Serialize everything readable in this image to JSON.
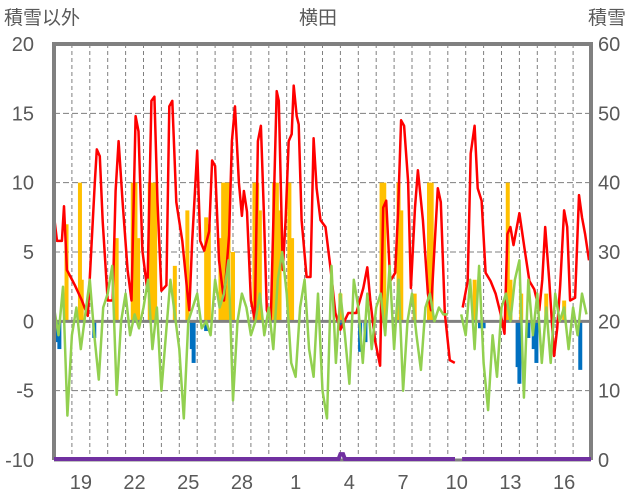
{
  "chart_data": {
    "type": "line",
    "title": "横田",
    "ylabel_left": "積雪以外",
    "ylabel_right": "積雪",
    "ylim_left": [
      -10,
      20
    ],
    "yticks_left": [
      "-10",
      "-5",
      "0",
      "5",
      "10",
      "15",
      "20"
    ],
    "ylim_right": [
      0,
      60
    ],
    "yticks_right": [
      "0",
      "10",
      "20",
      "30",
      "40",
      "50",
      "60"
    ],
    "x_unit": "days from the first day shown (day 18)",
    "xlim": [
      0,
      30
    ],
    "xtick_labels": [
      {
        "day": 1,
        "label": "19"
      },
      {
        "day": 4,
        "label": "22"
      },
      {
        "day": 7,
        "label": "25"
      },
      {
        "day": 10,
        "label": "28"
      },
      {
        "day": 13,
        "label": "1"
      },
      {
        "day": 16,
        "label": "4"
      },
      {
        "day": 19,
        "label": "7"
      },
      {
        "day": 22,
        "label": "10"
      },
      {
        "day": 25,
        "label": "13"
      },
      {
        "day": 28,
        "label": "16"
      }
    ],
    "grid": true,
    "colors": {
      "red": "#ff0000",
      "green": "#92d050",
      "orange": "#ffc000",
      "blue": "#0070c0",
      "purple": "#7030a0",
      "axis": "#808080",
      "grid": "#7f7f7f",
      "text": "#595959"
    },
    "series": [
      {
        "name": "red-line",
        "kind": "line",
        "axis": "left",
        "color": "#ff0000",
        "points": [
          [
            0,
            7.6
          ],
          [
            0.17,
            5.8
          ],
          [
            0.44,
            5.8
          ],
          [
            0.56,
            8.3
          ],
          [
            0.72,
            3.7
          ],
          [
            0.89,
            3.3
          ],
          [
            1.17,
            2.6
          ],
          [
            1.56,
            1.5
          ],
          [
            1.89,
            0.4
          ],
          [
            2.28,
            10
          ],
          [
            2.39,
            12.4
          ],
          [
            2.56,
            11.9
          ],
          [
            2.72,
            7.2
          ],
          [
            3.0,
            1.5
          ],
          [
            3.28,
            1.5
          ],
          [
            3.44,
            9.4
          ],
          [
            3.61,
            13
          ],
          [
            3.83,
            8.6
          ],
          [
            4.11,
            3.7
          ],
          [
            4.33,
            1.5
          ],
          [
            4.56,
            14.8
          ],
          [
            4.72,
            13.7
          ],
          [
            4.94,
            5.1
          ],
          [
            5.22,
            2.2
          ],
          [
            5.44,
            15.9
          ],
          [
            5.61,
            16.2
          ],
          [
            5.78,
            8.6
          ],
          [
            6.0,
            2.2
          ],
          [
            6.28,
            2.6
          ],
          [
            6.44,
            15.5
          ],
          [
            6.61,
            15.9
          ],
          [
            6.83,
            8.6
          ],
          [
            7.17,
            5.8
          ],
          [
            7.44,
            2.2
          ],
          [
            7.56,
            0.8
          ],
          [
            7.72,
            5.8
          ],
          [
            8.0,
            12.3
          ],
          [
            8.17,
            5.8
          ],
          [
            8.39,
            5.1
          ],
          [
            8.67,
            6.5
          ],
          [
            8.83,
            11.6
          ],
          [
            9.0,
            11.2
          ],
          [
            9.22,
            4.4
          ],
          [
            9.5,
            1.5
          ],
          [
            9.78,
            6.2
          ],
          [
            9.94,
            13
          ],
          [
            10.11,
            15.5
          ],
          [
            10.33,
            10
          ],
          [
            10.5,
            7.6
          ],
          [
            10.61,
            9.4
          ],
          [
            10.78,
            7.9
          ],
          [
            11.0,
            1.5
          ],
          [
            11.22,
            0.1
          ],
          [
            11.39,
            13
          ],
          [
            11.56,
            14.1
          ],
          [
            11.72,
            8
          ],
          [
            11.89,
            0.8
          ],
          [
            12.11,
            0.1
          ],
          [
            12.44,
            16.6
          ],
          [
            12.56,
            15.9
          ],
          [
            12.78,
            3.7
          ],
          [
            12.94,
            7.3
          ],
          [
            13.11,
            13
          ],
          [
            13.28,
            13.5
          ],
          [
            13.39,
            17
          ],
          [
            13.56,
            14.8
          ],
          [
            13.67,
            14.2
          ],
          [
            13.83,
            7.3
          ],
          [
            14.11,
            3.2
          ],
          [
            14.33,
            3.2
          ],
          [
            14.5,
            13.2
          ],
          [
            14.67,
            9.6
          ],
          [
            14.89,
            7.3
          ],
          [
            15.17,
            6.8
          ],
          [
            15.44,
            3.9
          ],
          [
            15.72,
            0.6
          ],
          [
            16.0,
            -0.6
          ],
          [
            16.44,
            0.6
          ],
          [
            16.89,
            0.6
          ],
          [
            17.28,
            2.4
          ],
          [
            17.5,
            3.9
          ],
          [
            17.67,
            1.5
          ],
          [
            17.94,
            -1.4
          ],
          [
            18.22,
            -3.2
          ],
          [
            18.39,
            8.2
          ],
          [
            18.56,
            8.7
          ],
          [
            18.78,
            2.9
          ],
          [
            19.06,
            3.5
          ],
          [
            19.22,
            7.8
          ],
          [
            19.39,
            14.5
          ],
          [
            19.56,
            14.1
          ],
          [
            19.78,
            10.1
          ],
          [
            19.94,
            2.4
          ],
          [
            20.17,
            8.2
          ],
          [
            20.33,
            10.9
          ],
          [
            20.61,
            7.3
          ],
          [
            20.89,
            2.0
          ],
          [
            21.06,
            0.8
          ],
          [
            21.44,
            9.6
          ],
          [
            21.61,
            8.6
          ],
          [
            21.83,
            0.6
          ],
          [
            22.11,
            -2.8
          ],
          [
            22.39,
            -3.0
          ],
          null,
          [
            22.83,
            1.0
          ],
          [
            23.11,
            2.9
          ],
          [
            23.28,
            12.1
          ],
          [
            23.5,
            14.1
          ],
          [
            23.67,
            9.6
          ],
          [
            23.89,
            8.7
          ],
          [
            24.11,
            3.5
          ],
          [
            24.39,
            2.9
          ],
          [
            24.67,
            2.0
          ],
          [
            24.94,
            0.6
          ],
          [
            25.17,
            -0.9
          ],
          [
            25.33,
            6.3
          ],
          [
            25.5,
            6.8
          ],
          [
            25.67,
            5.5
          ],
          [
            26.0,
            7.8
          ],
          [
            26.28,
            5.3
          ],
          [
            26.56,
            2.9
          ],
          [
            26.83,
            2.3
          ],
          [
            27.11,
            0.8
          ],
          [
            27.28,
            3
          ],
          [
            27.44,
            6.8
          ],
          [
            27.67,
            2.9
          ],
          [
            27.83,
            -0.4
          ],
          [
            27.94,
            -2.5
          ],
          [
            28.11,
            -0.5
          ],
          [
            28.28,
            2.6
          ],
          [
            28.5,
            8.0
          ],
          [
            28.67,
            6.8
          ],
          [
            28.83,
            1.5
          ],
          [
            29.11,
            1.7
          ],
          [
            29.33,
            9.1
          ],
          [
            29.5,
            7.5
          ],
          [
            29.67,
            6.3
          ],
          [
            29.89,
            4.4
          ]
        ]
      },
      {
        "name": "green-line",
        "kind": "line",
        "axis": "left",
        "color": "#92d050",
        "step_days": 0.25,
        "values": [
          1,
          -1,
          2.5,
          -6.8,
          -1,
          1,
          -2,
          0.5,
          3,
          -1,
          -4.2,
          1,
          2,
          4,
          -5.3,
          0,
          2,
          -1,
          0.5,
          -0.5,
          1,
          3,
          -2,
          1,
          -5,
          -1,
          3,
          0.5,
          -2,
          -7,
          0,
          1,
          2,
          -0.5,
          0,
          -1,
          3,
          1,
          2,
          4.4,
          -5.7,
          0,
          2,
          1,
          -1,
          0,
          2,
          -1,
          1,
          -2,
          3,
          5,
          2,
          -3,
          -4,
          1,
          3,
          -2,
          -4,
          2,
          -5,
          -7,
          4,
          -3,
          2,
          -1,
          -4.5,
          3,
          1,
          -3,
          2,
          -2,
          1,
          2,
          -1,
          4,
          -2,
          3,
          -5,
          0,
          2,
          -1,
          -3.5,
          1,
          2,
          0,
          1,
          0.5,
          0.5,
          null,
          null,
          0.5,
          -1,
          3,
          -2,
          4,
          -3,
          -6.4,
          -1,
          -4,
          1,
          2,
          0,
          3,
          4.4,
          -5.5,
          3,
          -1,
          2,
          -3,
          1,
          -3,
          2,
          0,
          1,
          -2,
          1,
          -1,
          2,
          0.5
        ]
      },
      {
        "name": "orange-bars",
        "kind": "bar",
        "axis": "left",
        "color": "#ffc000",
        "points": [
          [
            0.7,
            7
          ],
          [
            1.45,
            10
          ],
          [
            1.55,
            3
          ],
          [
            3.5,
            6
          ],
          [
            4.4,
            10
          ],
          [
            4.55,
            10
          ],
          [
            4.7,
            6
          ],
          [
            5.35,
            10
          ],
          [
            5.5,
            10
          ],
          [
            5.65,
            10
          ],
          [
            6.75,
            4
          ],
          [
            7.45,
            8
          ],
          [
            8.5,
            7.5
          ],
          [
            8.65,
            7
          ],
          [
            9.3,
            6
          ],
          [
            9.45,
            10
          ],
          [
            9.6,
            10
          ],
          [
            9.75,
            10
          ],
          [
            10.0,
            5
          ],
          [
            11.2,
            10
          ],
          [
            11.35,
            10
          ],
          [
            11.5,
            8
          ],
          [
            12.3,
            10
          ],
          [
            12.45,
            10
          ],
          [
            12.6,
            8
          ],
          [
            13.15,
            10
          ],
          [
            13.3,
            6
          ],
          [
            16.0,
            2
          ],
          [
            18.3,
            10
          ],
          [
            18.45,
            10
          ],
          [
            19.25,
            10
          ],
          [
            19.4,
            8
          ],
          [
            20.15,
            2
          ],
          [
            20.95,
            10
          ],
          [
            21.1,
            10
          ],
          [
            23.5,
            3
          ],
          [
            25.35,
            10
          ],
          [
            25.5,
            3
          ],
          [
            26.1,
            2
          ],
          [
            27.5,
            2
          ],
          [
            28.5,
            1.5
          ]
        ]
      },
      {
        "name": "blue-bars",
        "kind": "bar",
        "axis": "left",
        "color": "#0070c0",
        "points": [
          [
            0.2,
            -1.5
          ],
          [
            0.3,
            -2
          ],
          [
            2.25,
            -1.2
          ],
          [
            7.7,
            -2
          ],
          [
            7.8,
            -3
          ],
          [
            8.5,
            -0.7
          ],
          [
            16.05,
            -0.5
          ],
          [
            17.1,
            -2.2
          ],
          [
            17.4,
            -1.5
          ],
          [
            23.8,
            -0.5
          ],
          [
            24.0,
            -0.5
          ],
          [
            25.9,
            -3.3
          ],
          [
            26.0,
            -4.5
          ],
          [
            26.5,
            -1.2
          ],
          [
            26.8,
            -2
          ],
          [
            26.95,
            -3
          ],
          [
            29.4,
            -3.5
          ]
        ]
      },
      {
        "name": "purple-line",
        "kind": "line",
        "axis": "right",
        "color": "#7030a0",
        "points": [
          [
            0,
            0
          ],
          [
            15.9,
            0
          ],
          [
            16.0,
            0.7
          ],
          [
            16.15,
            0.7
          ],
          [
            16.25,
            0
          ],
          [
            22.4,
            0
          ],
          null,
          [
            22.8,
            0
          ],
          [
            30,
            0
          ]
        ]
      }
    ]
  }
}
